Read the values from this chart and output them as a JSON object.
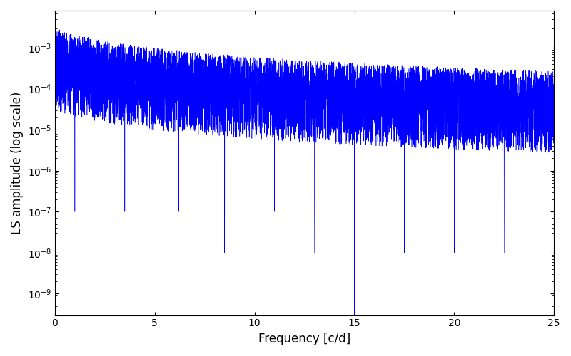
{
  "xlabel": "Frequency [c/d]",
  "ylabel": "LS amplitude (log scale)",
  "line_color": "#0000FF",
  "xlim": [
    0,
    25
  ],
  "ylim": [
    3e-10,
    0.008
  ],
  "xticks": [
    0,
    5,
    10,
    15,
    20,
    25
  ],
  "background_color": "#ffffff",
  "figsize": [
    8.0,
    5.0
  ],
  "dpi": 100,
  "seed": 42,
  "n_points": 8000,
  "freq_max": 25.0,
  "deep_null_freq": 15.0,
  "deep_null_value": 3e-10
}
